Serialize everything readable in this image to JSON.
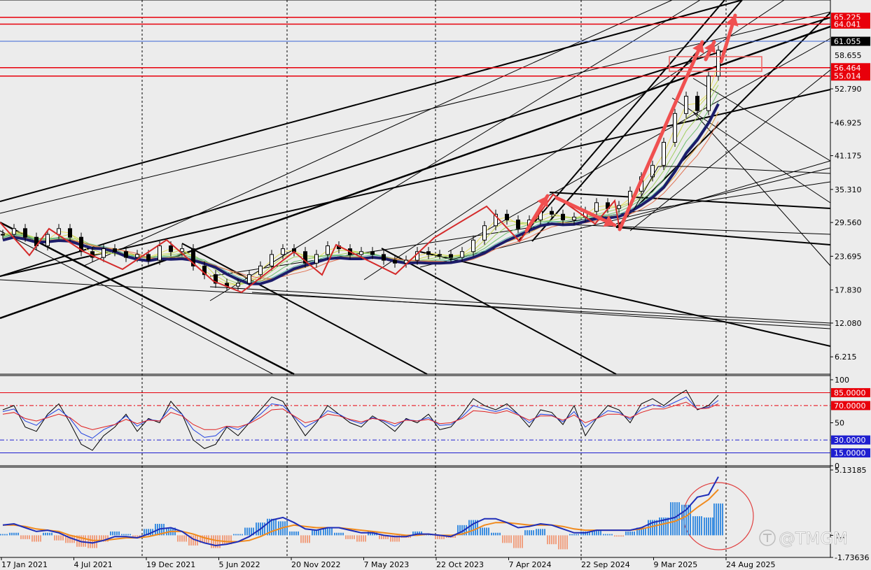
{
  "chart_data": [
    {
      "type": "candlestick",
      "panel": "price",
      "ylim": [
        3.2,
        67.5
      ],
      "y_ticks": [
        "52.790",
        "46.925",
        "41.175",
        "35.310",
        "29.560",
        "23.695",
        "17.830",
        "12.080",
        "6.215"
      ],
      "x_ticks": [
        "17 Jan 2021",
        "4 Jul 2021",
        "19 Dec 2021",
        "5 Jun 2022",
        "20 Nov 2022",
        "7 May 2023",
        "22 Oct 2023",
        "7 Apr 2024",
        "22 Sep 2024",
        "9 Mar 2025",
        "24 Aug 2025"
      ],
      "horizontal_levels": [
        {
          "value": 65.225,
          "label": "65.225",
          "color": "#e8000b"
        },
        {
          "value": 64.041,
          "label": "64.041",
          "color": "#e8000b"
        },
        {
          "value": 61.055,
          "label": "61.055",
          "color": "#3a64d6"
        },
        {
          "value": 58.655,
          "label": "58.655",
          "color": "#000000"
        },
        {
          "value": 56.464,
          "label": "56.464",
          "color": "#e8000b"
        },
        {
          "value": 55.014,
          "label": "55.014",
          "color": "#e8000b"
        }
      ],
      "series": [
        {
          "name": "",
          "key": "price",
          "color": "#000000",
          "x": [
            0,
            16,
            32,
            48,
            64,
            80,
            96,
            112,
            128,
            144,
            160,
            176,
            192,
            208,
            224,
            240,
            256,
            272,
            288,
            304,
            320,
            336,
            352,
            368,
            384,
            400,
            416,
            432,
            448,
            464,
            480,
            496,
            512,
            528,
            544,
            560,
            576,
            592,
            608,
            624,
            640,
            656,
            672,
            688,
            704,
            720,
            736,
            752,
            768,
            784,
            800,
            816,
            832,
            848,
            864,
            880,
            896,
            912,
            928,
            944,
            960,
            976,
            992,
            1008,
            1022
          ],
          "values": [
            27.5,
            28.5,
            27.0,
            25.5,
            27.5,
            28.5,
            27.0,
            24.5,
            23.5,
            25.0,
            24.5,
            23.5,
            24.0,
            23.0,
            25.5,
            24.5,
            25.0,
            22.0,
            20.5,
            19.0,
            18.5,
            19.0,
            20.5,
            22.0,
            24.0,
            25.0,
            24.5,
            22.5,
            24.0,
            25.5,
            25.0,
            24.0,
            24.5,
            24.0,
            23.0,
            22.5,
            23.0,
            24.5,
            24.0,
            24.0,
            23.5,
            24.5,
            26.5,
            29.0,
            31.0,
            30.0,
            28.5,
            30.0,
            31.5,
            31.0,
            30.0,
            30.5,
            31.5,
            33.0,
            32.0,
            32.5,
            35.0,
            37.5,
            39.5,
            43.5,
            48.5,
            51.5,
            49.0,
            55.0,
            59.5
          ]
        }
      ]
    },
    {
      "type": "line",
      "panel": "oscillator",
      "ylim": [
        0,
        100
      ],
      "y_ticks": [
        "100",
        "50",
        "0"
      ],
      "horizontal_levels": [
        {
          "value": 85,
          "label": "85.0000",
          "color": "#e8000b"
        },
        {
          "value": 70,
          "label": "70.0000",
          "color": "#e8000b"
        },
        {
          "value": 30,
          "label": "30.0000",
          "color": "#1f1fd0"
        },
        {
          "value": 15,
          "label": "15.0000",
          "color": "#1f1fd0"
        }
      ],
      "series": [
        {
          "name": "",
          "color": "#000000",
          "x": [
            0,
            16,
            32,
            48,
            64,
            80,
            96,
            112,
            128,
            144,
            160,
            176,
            192,
            208,
            224,
            240,
            256,
            272,
            288,
            304,
            320,
            336,
            352,
            368,
            384,
            400,
            416,
            432,
            448,
            464,
            480,
            496,
            512,
            528,
            544,
            560,
            576,
            592,
            608,
            624,
            640,
            656,
            672,
            688,
            704,
            720,
            736,
            752,
            768,
            784,
            800,
            816,
            832,
            848,
            864,
            880,
            896,
            912,
            928,
            944,
            960,
            976,
            992,
            1008,
            1022
          ],
          "values": [
            65,
            70,
            45,
            40,
            60,
            72,
            50,
            25,
            18,
            35,
            45,
            60,
            40,
            55,
            50,
            75,
            60,
            30,
            20,
            25,
            45,
            35,
            50,
            65,
            80,
            75,
            55,
            35,
            50,
            70,
            60,
            50,
            45,
            58,
            50,
            40,
            55,
            50,
            60,
            42,
            45,
            60,
            78,
            70,
            65,
            72,
            60,
            45,
            65,
            62,
            48,
            70,
            35,
            55,
            70,
            65,
            50,
            72,
            78,
            70,
            80,
            88,
            65,
            70,
            82
          ]
        },
        {
          "name": "",
          "color": "#2040e0",
          "x": [
            0,
            16,
            32,
            48,
            64,
            80,
            96,
            112,
            128,
            144,
            160,
            176,
            192,
            208,
            224,
            240,
            256,
            272,
            288,
            304,
            320,
            336,
            352,
            368,
            384,
            400,
            416,
            432,
            448,
            464,
            480,
            496,
            512,
            528,
            544,
            560,
            576,
            592,
            608,
            624,
            640,
            656,
            672,
            688,
            704,
            720,
            736,
            752,
            768,
            784,
            800,
            816,
            832,
            848,
            864,
            880,
            896,
            912,
            928,
            944,
            960,
            976,
            992,
            1008,
            1022
          ],
          "values": [
            63,
            66,
            52,
            47,
            58,
            66,
            55,
            38,
            32,
            42,
            48,
            58,
            46,
            54,
            52,
            68,
            60,
            42,
            33,
            35,
            46,
            42,
            50,
            60,
            72,
            70,
            57,
            45,
            52,
            64,
            60,
            53,
            49,
            56,
            52,
            46,
            54,
            52,
            56,
            47,
            48,
            57,
            70,
            66,
            63,
            67,
            60,
            50,
            60,
            59,
            51,
            63,
            45,
            55,
            64,
            62,
            54,
            66,
            71,
            68,
            74,
            80,
            66,
            68,
            76
          ]
        },
        {
          "name": "",
          "color": "#e02020",
          "x": [
            0,
            16,
            32,
            48,
            64,
            80,
            96,
            112,
            128,
            144,
            160,
            176,
            192,
            208,
            224,
            240,
            256,
            272,
            288,
            304,
            320,
            336,
            352,
            368,
            384,
            400,
            416,
            432,
            448,
            464,
            480,
            496,
            512,
            528,
            544,
            560,
            576,
            592,
            608,
            624,
            640,
            656,
            672,
            688,
            704,
            720,
            736,
            752,
            768,
            784,
            800,
            816,
            832,
            848,
            864,
            880,
            896,
            912,
            928,
            944,
            960,
            976,
            992,
            1008,
            1022
          ],
          "values": [
            60,
            62,
            55,
            52,
            56,
            60,
            56,
            46,
            42,
            45,
            48,
            54,
            49,
            53,
            52,
            62,
            58,
            48,
            42,
            42,
            46,
            45,
            49,
            56,
            65,
            66,
            58,
            50,
            53,
            60,
            58,
            54,
            51,
            55,
            53,
            49,
            53,
            52,
            54,
            49,
            50,
            55,
            64,
            63,
            61,
            64,
            59,
            53,
            58,
            58,
            53,
            59,
            50,
            55,
            60,
            60,
            56,
            62,
            66,
            66,
            70,
            74,
            66,
            67,
            72
          ]
        }
      ]
    },
    {
      "type": "bar",
      "panel": "macd",
      "ylim": [
        -1.73636,
        5.13185
      ],
      "y_ticks": [
        "5.13185",
        "0.0",
        "-1.73636"
      ],
      "series": [
        {
          "name": "",
          "key": "histogram",
          "color": "#3c8ee0",
          "negative_color": "#f0a080",
          "x": [
            0,
            16,
            32,
            48,
            64,
            80,
            96,
            112,
            128,
            144,
            160,
            176,
            192,
            208,
            224,
            240,
            256,
            272,
            288,
            304,
            320,
            336,
            352,
            368,
            384,
            400,
            416,
            432,
            448,
            464,
            480,
            496,
            512,
            528,
            544,
            560,
            576,
            592,
            608,
            624,
            640,
            656,
            672,
            688,
            704,
            720,
            736,
            752,
            768,
            784,
            800,
            816,
            832,
            848,
            864,
            880,
            896,
            912,
            928,
            944,
            960,
            976,
            992,
            1008,
            1022
          ],
          "values": [
            0.1,
            0.2,
            -0.3,
            -0.5,
            0.2,
            -0.4,
            -0.6,
            -0.9,
            -1.0,
            -0.5,
            0.3,
            0.1,
            -0.2,
            0.5,
            0.9,
            0.6,
            -0.5,
            -0.8,
            -0.6,
            -1.0,
            -0.7,
            0.1,
            0.6,
            1.0,
            1.3,
            1.1,
            0.3,
            -0.6,
            0.4,
            0.6,
            0.2,
            -0.3,
            -0.5,
            0.3,
            -0.3,
            -0.5,
            -0.2,
            0.3,
            0.1,
            -0.3,
            -0.2,
            0.8,
            1.2,
            0.6,
            0.2,
            -0.6,
            -1.0,
            0.4,
            0.5,
            -0.7,
            -1.1,
            0.1,
            0.3,
            0.4,
            0.1,
            -0.1,
            0.3,
            0.6,
            1.2,
            1.4,
            2.6,
            2.4,
            1.5,
            1.4,
            2.5
          ]
        },
        {
          "name": "",
          "key": "macd",
          "color": "#1e2db8",
          "x": [
            0,
            16,
            32,
            48,
            64,
            80,
            96,
            112,
            128,
            144,
            160,
            176,
            192,
            208,
            224,
            240,
            256,
            272,
            288,
            304,
            320,
            336,
            352,
            368,
            384,
            400,
            416,
            432,
            448,
            464,
            480,
            496,
            512,
            528,
            544,
            560,
            576,
            592,
            608,
            624,
            640,
            656,
            672,
            688,
            704,
            720,
            736,
            752,
            768,
            784,
            800,
            816,
            832,
            848,
            864,
            880,
            896,
            912,
            928,
            944,
            960,
            976,
            992,
            1008,
            1022
          ],
          "values": [
            0.8,
            0.9,
            0.6,
            0.3,
            0.4,
            0.2,
            -0.2,
            -0.5,
            -0.6,
            -0.4,
            -0.1,
            -0.1,
            -0.2,
            0.1,
            0.5,
            0.6,
            0.3,
            -0.3,
            -0.6,
            -0.8,
            -0.7,
            -0.5,
            -0.1,
            0.5,
            1.2,
            1.4,
            1.0,
            0.5,
            0.4,
            0.6,
            0.6,
            0.4,
            0.2,
            0.2,
            0.0,
            -0.1,
            -0.1,
            0.1,
            0.1,
            0.0,
            -0.1,
            0.3,
            0.9,
            1.3,
            1.3,
            1.0,
            0.6,
            0.7,
            0.9,
            0.8,
            0.5,
            0.2,
            0.2,
            0.4,
            0.4,
            0.4,
            0.4,
            0.6,
            1.0,
            1.2,
            1.4,
            2.0,
            3.0,
            3.2,
            4.6
          ]
        },
        {
          "name": "",
          "key": "signal",
          "color": "#f08a1c",
          "x": [
            0,
            16,
            32,
            48,
            64,
            80,
            96,
            112,
            128,
            144,
            160,
            176,
            192,
            208,
            224,
            240,
            256,
            272,
            288,
            304,
            320,
            336,
            352,
            368,
            384,
            400,
            416,
            432,
            448,
            464,
            480,
            496,
            512,
            528,
            544,
            560,
            576,
            592,
            608,
            624,
            640,
            656,
            672,
            688,
            704,
            720,
            736,
            752,
            768,
            784,
            800,
            816,
            832,
            848,
            864,
            880,
            896,
            912,
            928,
            944,
            960,
            976,
            992,
            1008,
            1022
          ],
          "values": [
            0.8,
            0.8,
            0.7,
            0.5,
            0.4,
            0.3,
            0.0,
            -0.2,
            -0.4,
            -0.4,
            -0.3,
            -0.2,
            -0.2,
            -0.1,
            0.1,
            0.3,
            0.3,
            0.1,
            -0.2,
            -0.4,
            -0.5,
            -0.5,
            -0.4,
            -0.1,
            0.3,
            0.6,
            0.8,
            0.7,
            0.6,
            0.6,
            0.6,
            0.5,
            0.4,
            0.3,
            0.2,
            0.1,
            0.0,
            0.0,
            0.1,
            0.0,
            0.0,
            0.1,
            0.4,
            0.8,
            1.0,
            1.0,
            0.9,
            0.8,
            0.8,
            0.8,
            0.7,
            0.5,
            0.4,
            0.4,
            0.4,
            0.4,
            0.4,
            0.5,
            0.7,
            0.9,
            1.1,
            1.5,
            2.2,
            2.8,
            3.6
          ]
        }
      ]
    }
  ],
  "watermark": "@TMGM"
}
